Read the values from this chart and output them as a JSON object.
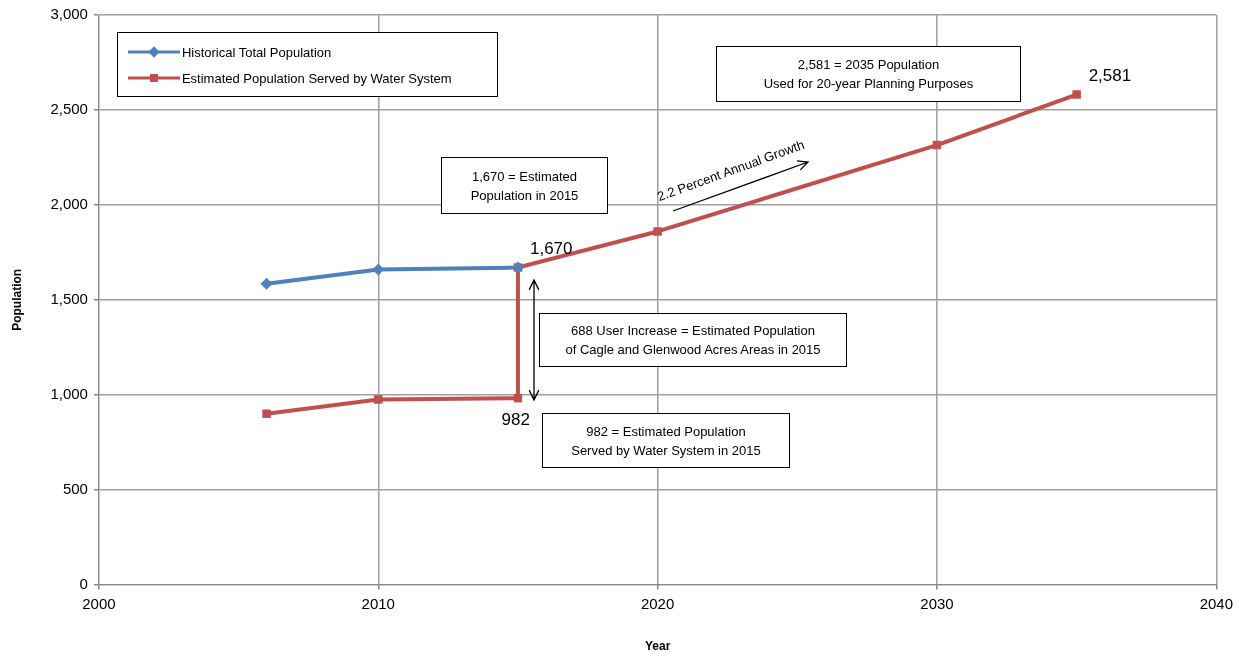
{
  "chart_data": {
    "type": "line",
    "xlabel": "Year",
    "ylabel": "Population",
    "xlim": [
      2000,
      2040
    ],
    "xticks": [
      2000,
      2010,
      2020,
      2030,
      2040
    ],
    "ylim": [
      0,
      3000
    ],
    "yticks": [
      {
        "value": 0,
        "label": "0"
      },
      {
        "value": 500,
        "label": "500"
      },
      {
        "value": 1000,
        "label": "1,000"
      },
      {
        "value": 1500,
        "label": "1,500"
      },
      {
        "value": 2000,
        "label": "2,000"
      },
      {
        "value": 2500,
        "label": "2,500"
      },
      {
        "value": 3000,
        "label": "3,000"
      }
    ],
    "grid": true,
    "legend": "top left",
    "series": [
      {
        "name": "Historical Total Population",
        "color": "#4f81bd",
        "marker": "diamond",
        "x": [
          2006,
          2010,
          2015
        ],
        "values": [
          1585,
          1660,
          1670
        ],
        "value_labels": [
          null,
          null,
          "1,670"
        ]
      },
      {
        "name": "Estimated Population Served by Water System",
        "color": "#c0504d",
        "marker": "square",
        "x": [
          2006,
          2010,
          2015,
          2015,
          2020,
          2030,
          2035
        ],
        "values": [
          900,
          975,
          982,
          1670,
          1860,
          2315,
          2581
        ],
        "value_labels": [
          null,
          null,
          "982",
          null,
          null,
          null,
          "2,581"
        ]
      }
    ],
    "annotations": [
      "1,670 = Estimated\nPopulation in 2015",
      "2,581 = 2035 Population\nUsed for 20-year Planning Purposes",
      "688 User Increase = Estimated  Population\nof Cagle and Glenwood Acres Areas in 2015",
      "982 = Estimated Population\nServed by Water System in 2015",
      "2.2 Percent Annual Growth"
    ]
  }
}
